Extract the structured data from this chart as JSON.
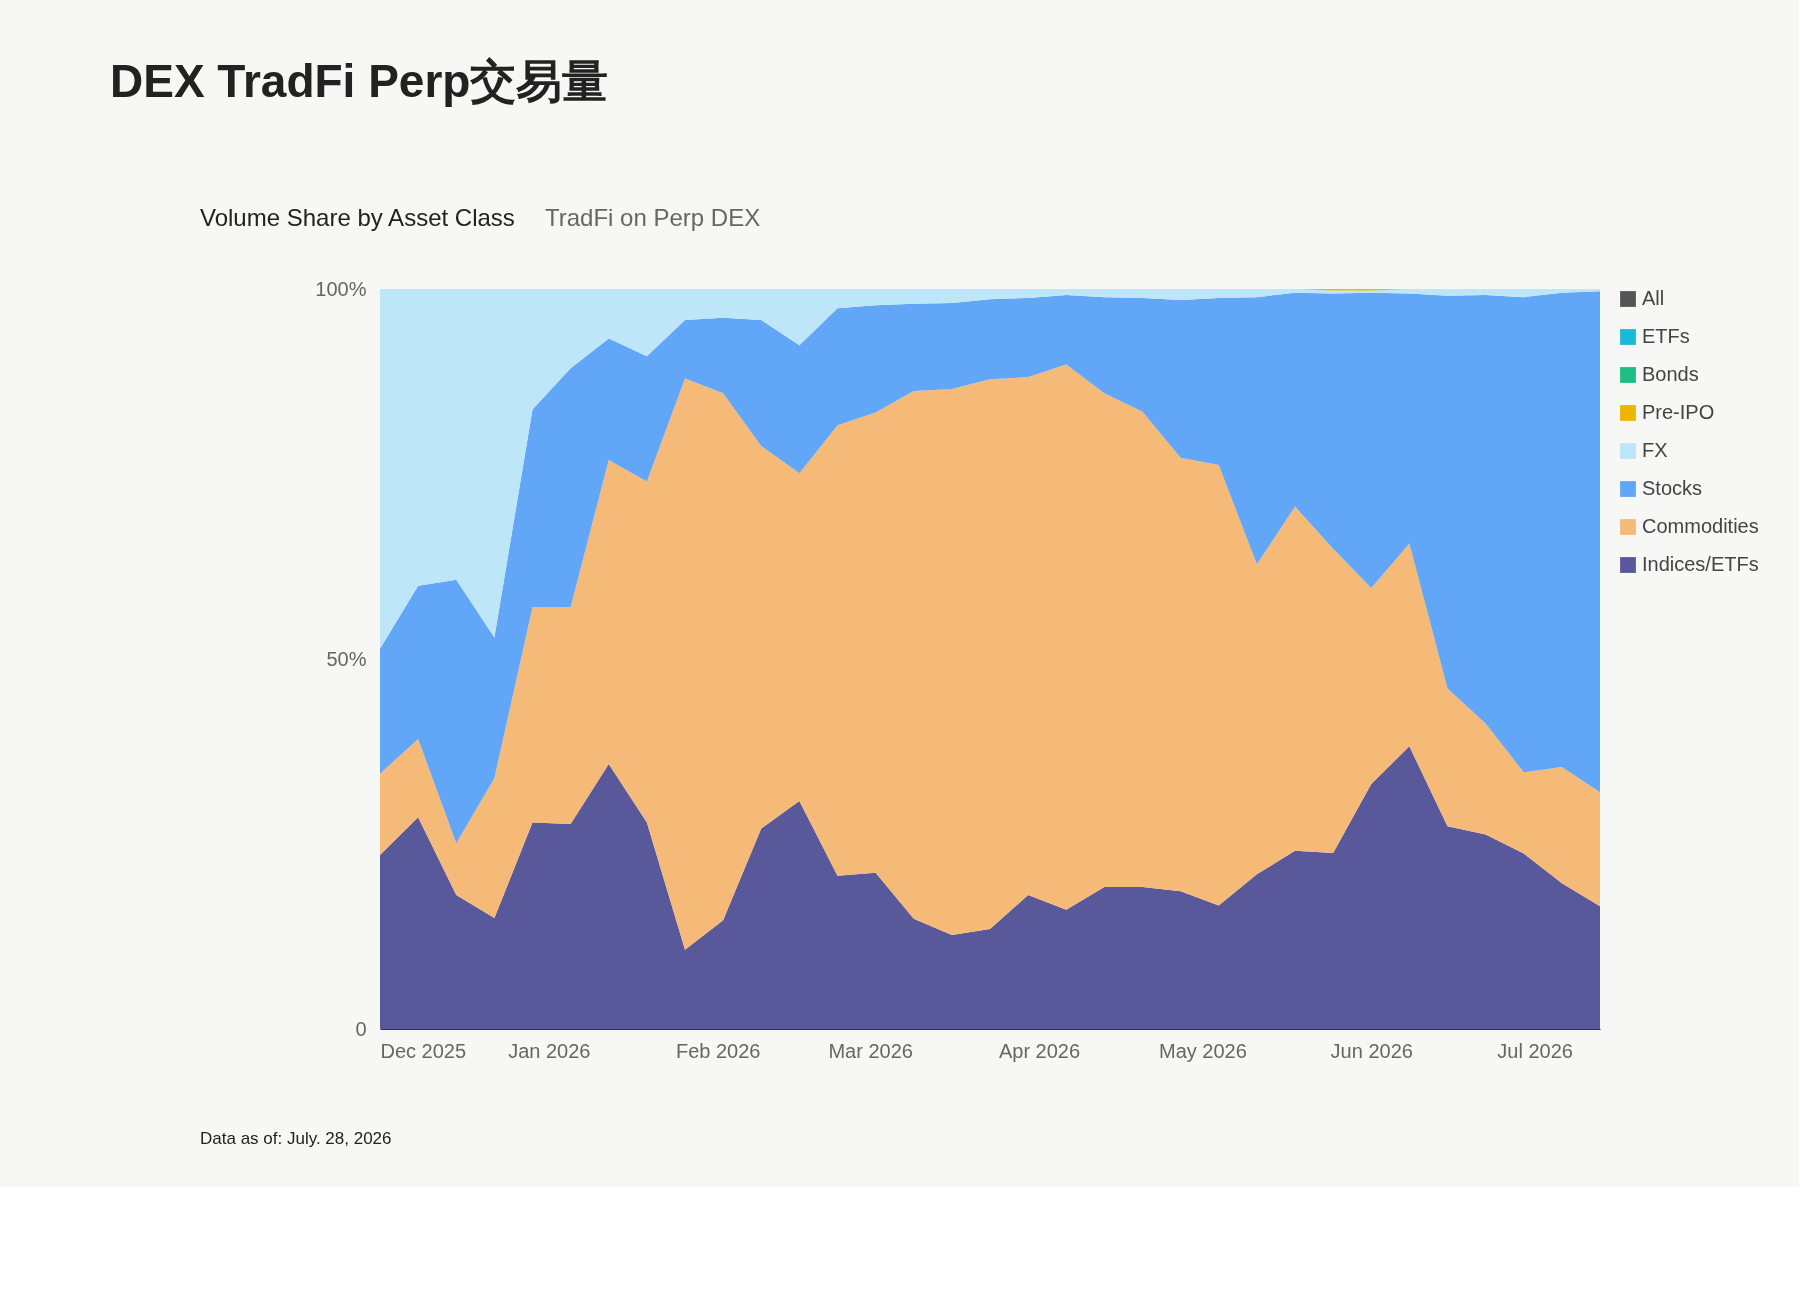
{
  "chart_data": {
    "type": "area",
    "stacked": true,
    "title": "DEX TradFi Perp交易量",
    "subtitle": "Volume Share by Asset Class",
    "annotations": [
      "TradFi on Perp DEX",
      "Data as of: July. 28, 2026"
    ],
    "x": [
      "2025-12-01",
      "2025-12-08",
      "2025-12-15",
      "2025-12-22",
      "2025-12-29",
      "2026-01-05",
      "2026-01-12",
      "2026-01-19",
      "2026-01-26",
      "2026-02-02",
      "2026-02-09",
      "2026-02-16",
      "2026-02-23",
      "2026-03-02",
      "2026-03-09",
      "2026-03-16",
      "2026-03-23",
      "2026-03-30",
      "2026-04-06",
      "2026-04-13",
      "2026-04-20",
      "2026-04-27",
      "2026-05-04",
      "2026-05-11",
      "2026-05-18",
      "2026-05-25",
      "2026-06-01",
      "2026-06-08",
      "2026-06-15",
      "2026-06-22",
      "2026-06-29",
      "2026-07-06",
      "2026-07-13"
    ],
    "series": [
      {
        "name": "Indices/ETFs",
        "color": "#58589a",
        "values": [
          23.5,
          28.6,
          18.1,
          15.0,
          27.9,
          27.7,
          35.8,
          27.9,
          10.7,
          14.7,
          27.1,
          30.8,
          20.7,
          21.1,
          14.9,
          12.7,
          13.5,
          18.1,
          16.1,
          19.2,
          19.2,
          18.6,
          16.7,
          20.9,
          24.1,
          23.8,
          33.1,
          38.2,
          27.4,
          26.3,
          23.7,
          19.7,
          16.6
        ]
      },
      {
        "name": "Commodities",
        "color": "#f5b978",
        "values": [
          11.0,
          10.6,
          7.0,
          18.9,
          29.1,
          29.3,
          41.1,
          46.1,
          77.2,
          71.2,
          51.7,
          44.3,
          60.9,
          62.2,
          71.3,
          73.8,
          74.3,
          70.0,
          73.7,
          66.7,
          64.2,
          58.6,
          59.5,
          41.9,
          46.5,
          41.1,
          26.5,
          27.4,
          18.6,
          15.0,
          11.0,
          15.7,
          15.4
        ]
      },
      {
        "name": "Stocks",
        "color": "#62a6f7",
        "values": [
          16.9,
          20.7,
          35.6,
          19.0,
          26.7,
          32.3,
          16.4,
          16.9,
          7.9,
          10.2,
          17.0,
          17.3,
          15.8,
          14.5,
          11.8,
          11.6,
          10.8,
          10.7,
          9.4,
          13.0,
          15.4,
          21.3,
          22.6,
          36.1,
          28.9,
          34.5,
          39.9,
          33.8,
          53.1,
          57.9,
          64.2,
          64.1,
          67.7
        ]
      },
      {
        "name": "FX",
        "color": "#bde6f8",
        "values": [
          48.6,
          40.1,
          39.3,
          47.1,
          16.3,
          10.7,
          6.7,
          9.1,
          4.2,
          3.9,
          4.2,
          7.6,
          2.6,
          2.2,
          2.0,
          1.9,
          1.4,
          1.2,
          0.8,
          1.1,
          1.2,
          1.5,
          1.2,
          1.1,
          0.5,
          0.4,
          0.3,
          0.6,
          0.9,
          0.8,
          1.1,
          0.5,
          0.3
        ]
      },
      {
        "name": "Pre-IPO",
        "color": "#eeb500",
        "values": [
          0,
          0,
          0,
          0,
          0,
          0,
          0,
          0,
          0,
          0,
          0,
          0,
          0,
          0,
          0,
          0,
          0,
          0,
          0,
          0,
          0,
          0,
          0,
          0,
          0,
          0.2,
          0.2,
          0,
          0,
          0,
          0,
          0,
          0
        ]
      },
      {
        "name": "Bonds",
        "color": "#1dbf84",
        "values": [
          null,
          null,
          null,
          null,
          null,
          null,
          null,
          null,
          null,
          null,
          null,
          null,
          null,
          null,
          null,
          null,
          null,
          null,
          null,
          null,
          null,
          null,
          null,
          null,
          null,
          null,
          null,
          null,
          null,
          null,
          null,
          null,
          null
        ]
      },
      {
        "name": "ETFs",
        "color": "#1cb8d9",
        "values": [
          null,
          null,
          null,
          null,
          null,
          null,
          null,
          null,
          null,
          null,
          null,
          null,
          null,
          null,
          null,
          null,
          null,
          null,
          null,
          null,
          null,
          null,
          null,
          null,
          null,
          null,
          null,
          null,
          null,
          null,
          null,
          null,
          null
        ]
      },
      {
        "name": "All",
        "color": "#555555",
        "values": [
          null,
          null,
          null,
          null,
          null,
          null,
          null,
          null,
          null,
          null,
          null,
          null,
          null,
          null,
          null,
          null,
          null,
          null,
          null,
          null,
          null,
          null,
          null,
          null,
          null,
          null,
          null,
          null,
          null,
          null,
          null,
          null,
          null
        ]
      }
    ],
    "ylim": [
      0,
      100
    ],
    "yticks": [
      0,
      {
        "value": 50,
        "label": "50%"
      },
      {
        "value": 100,
        "label": "100%"
      }
    ],
    "xlim": [
      "2025-12-01",
      "2026-07-13"
    ],
    "xticks": [
      {
        "value": "2025-12-01",
        "label": "Dec 2025"
      },
      {
        "value": "2026-01-01",
        "label": "Jan 2026"
      },
      {
        "value": "2026-02-01",
        "label": "Feb 2026"
      },
      {
        "value": "2026-03-01",
        "label": "Mar 2026"
      },
      {
        "value": "2026-04-01",
        "label": "Apr 2026"
      },
      {
        "value": "2026-05-01",
        "label": "May 2026"
      },
      {
        "value": "2026-06-01",
        "label": "Jun 2026"
      },
      {
        "value": "2026-07-01",
        "label": "Jul 2026"
      }
    ],
    "grid": false,
    "legend": "right"
  }
}
